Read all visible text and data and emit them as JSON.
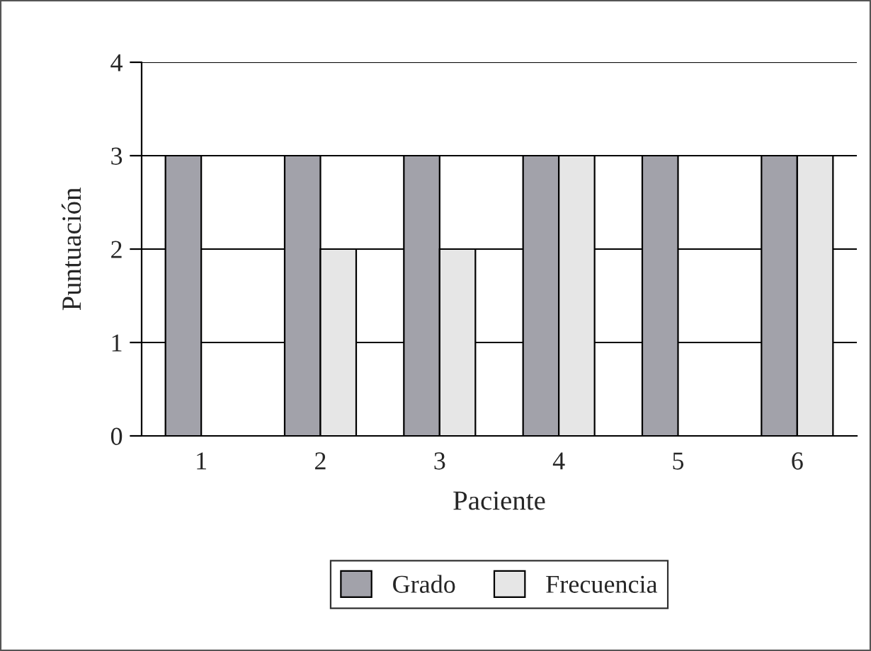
{
  "chart_data": {
    "type": "bar",
    "xlabel": "Paciente",
    "ylabel": "Puntuación",
    "categories": [
      "1",
      "2",
      "3",
      "4",
      "5",
      "6"
    ],
    "series": [
      {
        "name": "Grado",
        "color": "#a2a2aa",
        "values": [
          3,
          3,
          3,
          3,
          3,
          3
        ]
      },
      {
        "name": "Frecuencia",
        "color": "#e6e6e6",
        "values": [
          null,
          2,
          2,
          3,
          null,
          3
        ]
      }
    ],
    "ylim": [
      0,
      4
    ],
    "yticks": [
      0,
      1,
      2,
      3,
      4
    ],
    "grid": "y",
    "legend": "bottom"
  }
}
